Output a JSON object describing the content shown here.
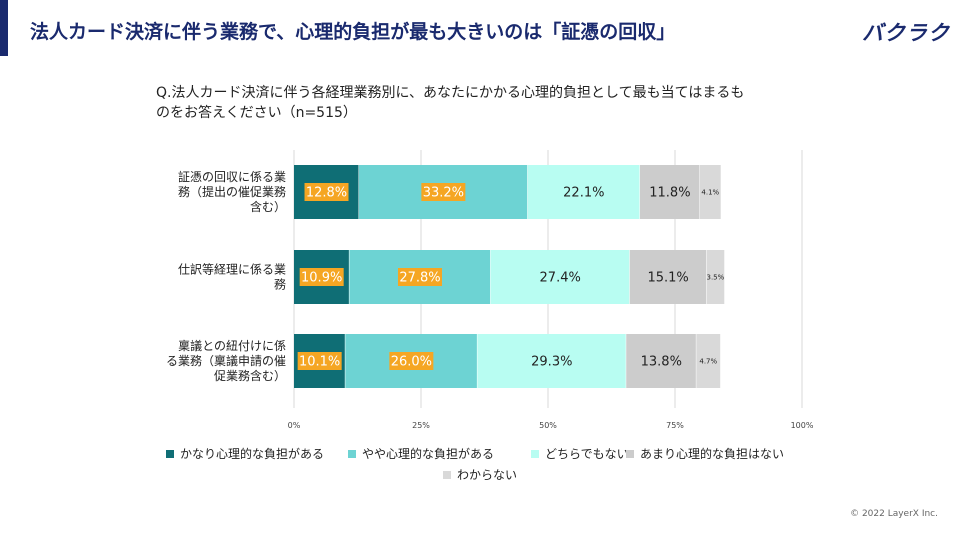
{
  "header": {
    "title": "法人カード決済に伴う業務で、心理的負担が最も大きいのは「証憑の回収」",
    "brand": "バクラク"
  },
  "question": {
    "line1": "Q.法人カード決済に伴う各経理業務別に、あなたにかかる心理的負担として最も当てはまるも",
    "line2": "のをお答えください（n=515）"
  },
  "footer": {
    "copyright": "© 2022 LayerX Inc."
  },
  "colors": {
    "accent": "#1a2a6e",
    "series": [
      "#0f6e75",
      "#6dd3d3",
      "#b8fdf2",
      "#cccccc",
      "#d9d9d9"
    ],
    "highlight": "#f5a623"
  },
  "chart_data": {
    "type": "bar",
    "orientation": "horizontal",
    "stacked": true,
    "categories": [
      [
        "証憑の回収に係る業",
        "務（提出の催促業務",
        "含む）"
      ],
      [
        "仕訳等経理に係る業",
        "務"
      ],
      [
        "稟議との紐付けに係",
        "る業務（稟議申請の催",
        "促業務含む）"
      ]
    ],
    "series": [
      {
        "name": "かなり心理的な負担がある",
        "values": [
          12.8,
          10.9,
          10.1
        ]
      },
      {
        "name": "やや心理的な負担がある",
        "values": [
          33.2,
          27.8,
          26.0
        ]
      },
      {
        "name": "どちらでもない",
        "values": [
          22.1,
          27.4,
          29.3
        ]
      },
      {
        "name": "あまり心理的な負担はない",
        "values": [
          11.8,
          15.1,
          13.8
        ]
      },
      {
        "name": "わからない",
        "values": [
          4.1,
          3.5,
          4.7
        ]
      }
    ],
    "data_labels": [
      [
        "12.8%",
        "33.2%",
        "22.1%",
        "11.8%",
        "4.1%"
      ],
      [
        "10.9%",
        "27.8%",
        "27.4%",
        "15.1%",
        "3.5%"
      ],
      [
        "10.1%",
        "26.0%",
        "29.3%",
        "13.8%",
        "4.7%"
      ]
    ],
    "highlighted_series": [
      0,
      1
    ],
    "x_ticks": [
      "0%",
      "25%",
      "50%",
      "75%",
      "100%"
    ],
    "xlim": [
      0,
      100
    ],
    "grid": true,
    "legend_position": "bottom"
  }
}
